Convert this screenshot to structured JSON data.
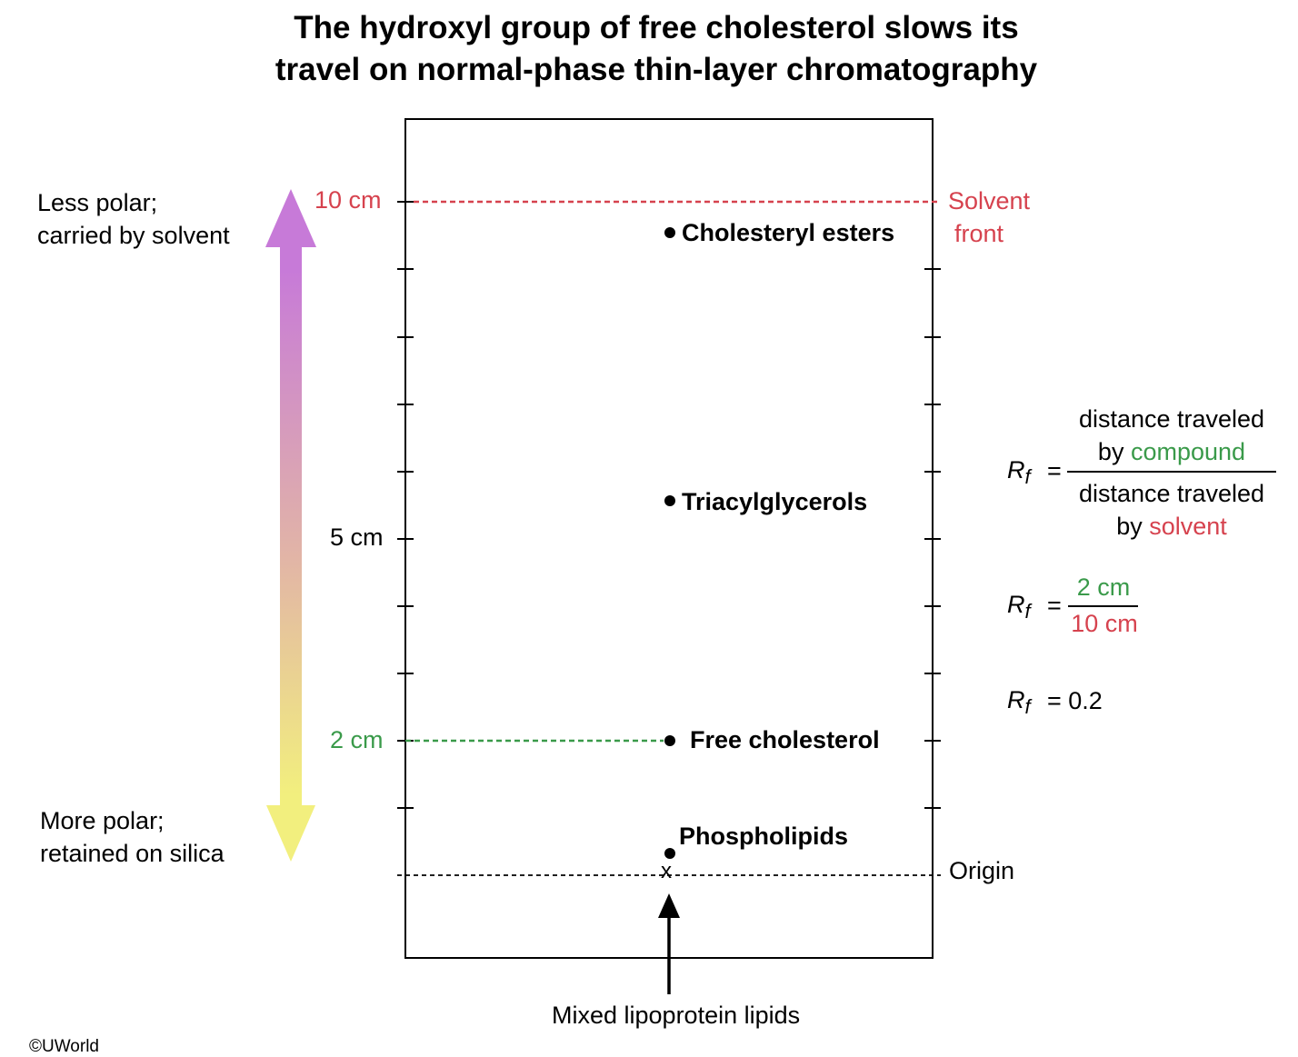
{
  "title": {
    "line1": "The hydroxyl group of free cholesterol slows its",
    "line2": "travel on normal-phase thin-layer chromatography"
  },
  "polarity": {
    "top_line1": "Less polar;",
    "top_line2": "carried by solvent",
    "bottom_line1": "More polar;",
    "bottom_line2": "retained on silica",
    "gradient_colors": [
      "#c77ad8",
      "#f2ef7e"
    ]
  },
  "scale": {
    "label_10": "10 cm",
    "label_5": "5 cm",
    "label_2": "2 cm"
  },
  "plate": {
    "solvent_front_line1": "Solvent",
    "solvent_front_line2": "front",
    "origin": "Origin",
    "origin_mark": "x",
    "sample_label": "Mixed lipoprotein lipids",
    "spots": {
      "cholesteryl_esters": "Cholesteryl esters",
      "triacylglycerols": "Triacylglycerols",
      "free_cholesterol": "Free cholesterol",
      "phospholipids": "Phospholipids"
    }
  },
  "formula": {
    "rf_symbol_r": "R",
    "rf_symbol_f": "f",
    "equals": "=",
    "numerator_line1": "distance traveled",
    "numerator_by": "by",
    "numerator_compound": "compound",
    "denominator_line1": "distance traveled",
    "denominator_by": "by",
    "denominator_solvent": "solvent",
    "example_numerator": "2 cm",
    "example_denominator": "10 cm",
    "result": "= 0.2"
  },
  "colors": {
    "green": "#3a9a4a",
    "red": "#d6424e"
  },
  "copyright": "©UWorld"
}
